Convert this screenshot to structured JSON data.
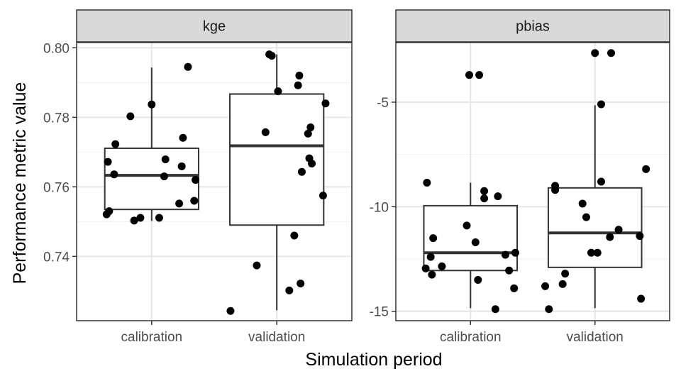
{
  "chart_data": {
    "type": "boxplot",
    "xlabel": "Simulation period",
    "ylabel": "Performance metric value",
    "categories": [
      "calibration",
      "validation"
    ],
    "grid": true,
    "theme": "bw",
    "facets": [
      {
        "name": "kge",
        "ylim": [
          0.7215,
          0.8015
        ],
        "yticks": [
          0.74,
          0.76,
          0.78,
          0.8
        ],
        "ytick_labels": [
          "0.74",
          "0.76",
          "0.78",
          "0.80"
        ],
        "boxes": [
          {
            "category": "calibration",
            "lower_whisker": 0.7502,
            "q1": 0.7535,
            "median": 0.7633,
            "q3": 0.7711,
            "upper_whisker": 0.7943
          },
          {
            "category": "validation",
            "lower_whisker": 0.7245,
            "q1": 0.749,
            "median": 0.7718,
            "q3": 0.7867,
            "upper_whisker": 0.7981
          }
        ],
        "points": [
          {
            "category": "calibration",
            "offset": 0.29,
            "y": 0.7945
          },
          {
            "category": "calibration",
            "offset": 0.0,
            "y": 0.7837
          },
          {
            "category": "calibration",
            "offset": -0.17,
            "y": 0.7803
          },
          {
            "category": "calibration",
            "offset": 0.25,
            "y": 0.7741
          },
          {
            "category": "calibration",
            "offset": -0.29,
            "y": 0.7723
          },
          {
            "category": "calibration",
            "offset": 0.11,
            "y": 0.7679
          },
          {
            "category": "calibration",
            "offset": -0.35,
            "y": 0.7672
          },
          {
            "category": "calibration",
            "offset": 0.24,
            "y": 0.7659
          },
          {
            "category": "calibration",
            "offset": -0.3,
            "y": 0.7636
          },
          {
            "category": "calibration",
            "offset": 0.1,
            "y": 0.763
          },
          {
            "category": "calibration",
            "offset": 0.35,
            "y": 0.762
          },
          {
            "category": "calibration",
            "offset": 0.34,
            "y": 0.756
          },
          {
            "category": "calibration",
            "offset": 0.22,
            "y": 0.7552
          },
          {
            "category": "calibration",
            "offset": -0.34,
            "y": 0.753
          },
          {
            "category": "calibration",
            "offset": -0.36,
            "y": 0.7521
          },
          {
            "category": "calibration",
            "offset": -0.09,
            "y": 0.7511
          },
          {
            "category": "calibration",
            "offset": 0.06,
            "y": 0.7511
          },
          {
            "category": "calibration",
            "offset": -0.14,
            "y": 0.7503
          },
          {
            "category": "validation",
            "offset": -0.06,
            "y": 0.7981
          },
          {
            "category": "validation",
            "offset": -0.04,
            "y": 0.7977
          },
          {
            "category": "validation",
            "offset": 0.18,
            "y": 0.792
          },
          {
            "category": "validation",
            "offset": 0.17,
            "y": 0.7892
          },
          {
            "category": "validation",
            "offset": 0.01,
            "y": 0.7875
          },
          {
            "category": "validation",
            "offset": 0.39,
            "y": 0.784
          },
          {
            "category": "validation",
            "offset": 0.27,
            "y": 0.7771
          },
          {
            "category": "validation",
            "offset": -0.09,
            "y": 0.7757
          },
          {
            "category": "validation",
            "offset": 0.25,
            "y": 0.7753
          },
          {
            "category": "validation",
            "offset": 0.26,
            "y": 0.7682
          },
          {
            "category": "validation",
            "offset": 0.28,
            "y": 0.7667
          },
          {
            "category": "validation",
            "offset": 0.2,
            "y": 0.7643
          },
          {
            "category": "validation",
            "offset": 0.37,
            "y": 0.7575
          },
          {
            "category": "validation",
            "offset": 0.14,
            "y": 0.746
          },
          {
            "category": "validation",
            "offset": -0.16,
            "y": 0.7374
          },
          {
            "category": "validation",
            "offset": 0.19,
            "y": 0.7322
          },
          {
            "category": "validation",
            "offset": 0.1,
            "y": 0.7302
          },
          {
            "category": "validation",
            "offset": -0.37,
            "y": 0.7243
          }
        ]
      },
      {
        "name": "pbias",
        "ylim": [
          -15.45,
          -2.15
        ],
        "yticks": [
          -15,
          -10,
          -5
        ],
        "ytick_labels": [
          "-15",
          "-10",
          "-5"
        ],
        "boxes": [
          {
            "category": "calibration",
            "lower_whisker": -14.85,
            "q1": -13.05,
            "median": -12.2,
            "q3": -9.95,
            "upper_whisker": -8.85
          },
          {
            "category": "validation",
            "lower_whisker": -14.85,
            "q1": -12.9,
            "median": -11.25,
            "q3": -9.1,
            "upper_whisker": -5.15
          }
        ],
        "points": [
          {
            "category": "calibration",
            "offset": -0.01,
            "y": -3.7
          },
          {
            "category": "calibration",
            "offset": 0.07,
            "y": -3.7
          },
          {
            "category": "calibration",
            "offset": -0.35,
            "y": -8.85
          },
          {
            "category": "calibration",
            "offset": 0.11,
            "y": -9.25
          },
          {
            "category": "calibration",
            "offset": 0.22,
            "y": -9.5
          },
          {
            "category": "calibration",
            "offset": 0.11,
            "y": -9.6
          },
          {
            "category": "calibration",
            "offset": -0.03,
            "y": -10.9
          },
          {
            "category": "calibration",
            "offset": -0.3,
            "y": -11.5
          },
          {
            "category": "calibration",
            "offset": 0.04,
            "y": -11.7
          },
          {
            "category": "calibration",
            "offset": 0.36,
            "y": -12.2
          },
          {
            "category": "calibration",
            "offset": 0.28,
            "y": -12.3
          },
          {
            "category": "calibration",
            "offset": -0.32,
            "y": -12.4
          },
          {
            "category": "calibration",
            "offset": -0.23,
            "y": -12.85
          },
          {
            "category": "calibration",
            "offset": -0.36,
            "y": -12.95
          },
          {
            "category": "calibration",
            "offset": 0.31,
            "y": -13.05
          },
          {
            "category": "calibration",
            "offset": -0.31,
            "y": -13.25
          },
          {
            "category": "calibration",
            "offset": 0.06,
            "y": -13.5
          },
          {
            "category": "calibration",
            "offset": 0.35,
            "y": -13.9
          },
          {
            "category": "calibration",
            "offset": 0.2,
            "y": -14.9
          },
          {
            "category": "validation",
            "offset": 0.0,
            "y": -2.65
          },
          {
            "category": "validation",
            "offset": 0.13,
            "y": -2.65
          },
          {
            "category": "validation",
            "offset": 0.05,
            "y": -5.1
          },
          {
            "category": "validation",
            "offset": 0.41,
            "y": -8.2
          },
          {
            "category": "validation",
            "offset": 0.05,
            "y": -8.8
          },
          {
            "category": "validation",
            "offset": -0.32,
            "y": -9.0
          },
          {
            "category": "validation",
            "offset": -0.32,
            "y": -9.2
          },
          {
            "category": "validation",
            "offset": -0.1,
            "y": -9.85
          },
          {
            "category": "validation",
            "offset": -0.07,
            "y": -10.5
          },
          {
            "category": "validation",
            "offset": 0.19,
            "y": -11.1
          },
          {
            "category": "validation",
            "offset": 0.36,
            "y": -11.4
          },
          {
            "category": "validation",
            "offset": 0.12,
            "y": -11.45
          },
          {
            "category": "validation",
            "offset": -0.03,
            "y": -12.2
          },
          {
            "category": "validation",
            "offset": 0.02,
            "y": -12.2
          },
          {
            "category": "validation",
            "offset": -0.24,
            "y": -13.2
          },
          {
            "category": "validation",
            "offset": -0.4,
            "y": -13.8
          },
          {
            "category": "validation",
            "offset": -0.26,
            "y": -13.7
          },
          {
            "category": "validation",
            "offset": 0.37,
            "y": -14.4
          },
          {
            "category": "validation",
            "offset": -0.37,
            "y": -14.9
          }
        ]
      }
    ]
  }
}
